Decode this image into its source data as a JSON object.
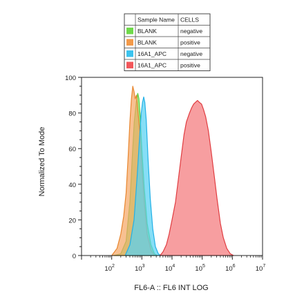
{
  "chart_data": {
    "type": "area",
    "xlabel": "FL6-A :: FL6 INT LOG",
    "ylabel": "Normalized To Mode",
    "x_scale": "log",
    "xlim": [
      10,
      10000000
    ],
    "ylim": [
      0,
      100
    ],
    "x_ticks": [
      {
        "base": "10",
        "exp": "2"
      },
      {
        "base": "10",
        "exp": "3"
      },
      {
        "base": "10",
        "exp": "4"
      },
      {
        "base": "10",
        "exp": "5"
      },
      {
        "base": "10",
        "exp": "6"
      },
      {
        "base": "10",
        "exp": "7"
      }
    ],
    "y_ticks": [
      0,
      20,
      40,
      60,
      80,
      100
    ],
    "legend": {
      "placement": "top",
      "headers": [
        "Sample Name",
        "CELLS"
      ],
      "rows": [
        {
          "sample": "BLANK",
          "cells": "negative",
          "color": "#6fd94a"
        },
        {
          "sample": "BLANK",
          "cells": "positive",
          "color": "#f39a4a"
        },
        {
          "sample": "16A1_APC",
          "cells": "negative",
          "color": "#3cc3ee"
        },
        {
          "sample": "16A1_APC",
          "cells": "positive",
          "color": "#f2575b"
        }
      ]
    },
    "series": [
      {
        "name": "BLANK negative",
        "fill": "#84e25d",
        "stroke": "#57c93a",
        "points": [
          [
            120,
            0
          ],
          [
            200,
            1
          ],
          [
            300,
            8
          ],
          [
            400,
            30
          ],
          [
            480,
            55
          ],
          [
            560,
            75
          ],
          [
            650,
            86
          ],
          [
            730,
            91
          ],
          [
            800,
            88
          ],
          [
            880,
            78
          ],
          [
            1000,
            60
          ],
          [
            1200,
            38
          ],
          [
            1500,
            18
          ],
          [
            2000,
            6
          ],
          [
            2600,
            1
          ],
          [
            3200,
            0
          ]
        ]
      },
      {
        "name": "BLANK positive",
        "fill": "#f5a766",
        "stroke": "#e8862f",
        "points": [
          [
            100,
            0
          ],
          [
            150,
            4
          ],
          [
            200,
            12
          ],
          [
            250,
            22
          ],
          [
            300,
            35
          ],
          [
            350,
            55
          ],
          [
            400,
            75
          ],
          [
            450,
            88
          ],
          [
            500,
            95
          ],
          [
            550,
            92
          ],
          [
            600,
            88
          ],
          [
            660,
            90
          ],
          [
            730,
            82
          ],
          [
            850,
            70
          ],
          [
            1000,
            50
          ],
          [
            1200,
            30
          ],
          [
            1500,
            12
          ],
          [
            2000,
            3
          ],
          [
            2600,
            0
          ]
        ]
      },
      {
        "name": "16A1_APC negative",
        "fill": "#58d1f3",
        "stroke": "#22b0e6",
        "points": [
          [
            280,
            0
          ],
          [
            400,
            6
          ],
          [
            550,
            20
          ],
          [
            700,
            45
          ],
          [
            850,
            68
          ],
          [
            950,
            80
          ],
          [
            1050,
            86
          ],
          [
            1150,
            89
          ],
          [
            1250,
            86
          ],
          [
            1400,
            76
          ],
          [
            1600,
            55
          ],
          [
            1900,
            32
          ],
          [
            2300,
            15
          ],
          [
            2800,
            5
          ],
          [
            3500,
            1
          ],
          [
            4200,
            0
          ]
        ]
      },
      {
        "name": "16A1_APC positive",
        "fill": "#f4797b",
        "stroke": "#e03c40",
        "points": [
          [
            4000,
            0
          ],
          [
            5000,
            2
          ],
          [
            6500,
            6
          ],
          [
            8000,
            12
          ],
          [
            10000,
            20
          ],
          [
            13000,
            30
          ],
          [
            16000,
            42
          ],
          [
            20000,
            55
          ],
          [
            25000,
            68
          ],
          [
            30000,
            75
          ],
          [
            38000,
            80
          ],
          [
            45000,
            83
          ],
          [
            52000,
            85
          ],
          [
            60000,
            86
          ],
          [
            70000,
            87
          ],
          [
            80000,
            86
          ],
          [
            95000,
            85
          ],
          [
            110000,
            82
          ],
          [
            130000,
            78
          ],
          [
            160000,
            70
          ],
          [
            200000,
            58
          ],
          [
            250000,
            45
          ],
          [
            310000,
            32
          ],
          [
            400000,
            18
          ],
          [
            500000,
            10
          ],
          [
            650000,
            4
          ],
          [
            850000,
            1
          ],
          [
            1100000,
            0
          ]
        ]
      }
    ]
  }
}
